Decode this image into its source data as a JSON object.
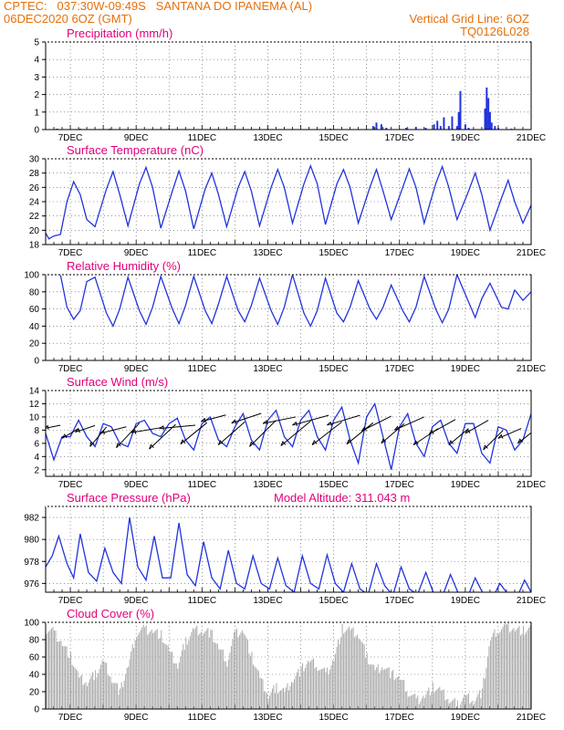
{
  "header": {
    "line1": "CPTEC:   037:30W-09:49S   SANTANA DO IPANEMA (AL)",
    "line2_left": "06DEC2020 6OZ (GMT)",
    "line2_right": "Vertical Grid Line: 6OZ",
    "line3_right": "TQ0126L028"
  },
  "colors": {
    "header": "#e6700a",
    "title": "#e0007a",
    "line": "#2233dd",
    "bar": "#2233dd",
    "cloud": "#aaaaaa",
    "grid": "#555555"
  },
  "chart_data": [
    {
      "type": "bar",
      "title": "Precipitation (mm/h)",
      "ylim": [
        0,
        5
      ],
      "yticks": [
        0,
        1,
        2,
        3,
        4,
        5
      ],
      "xlim": [
        6.25,
        21
      ],
      "xticks": [
        "7DEC",
        "9DEC",
        "11DEC",
        "13DEC",
        "15DEC",
        "17DEC",
        "19DEC",
        "21DEC"
      ],
      "x": [
        6.6,
        7.3,
        8.2,
        10.0,
        13.0,
        14.9,
        16.2,
        16.3,
        16.45,
        16.6,
        17.2,
        17.5,
        17.8,
        18.05,
        18.15,
        18.25,
        18.35,
        18.5,
        18.6,
        18.75,
        18.8,
        18.85,
        19.0,
        19.1,
        19.6,
        19.65,
        19.7,
        19.75,
        19.8,
        19.9,
        20.0,
        20.4
      ],
      "values": [
        0.05,
        0.05,
        0.05,
        0.05,
        0.05,
        0.05,
        0.2,
        0.4,
        0.3,
        0.1,
        0.1,
        0.15,
        0.1,
        0.3,
        0.5,
        0.2,
        0.7,
        0.2,
        0.75,
        0.2,
        1.0,
        2.2,
        0.3,
        0.1,
        1.2,
        2.4,
        1.8,
        1.0,
        0.4,
        0.2,
        0.1,
        0.05
      ]
    },
    {
      "type": "line",
      "title": "Surface Temperature (nC)",
      "ylim": [
        18,
        30
      ],
      "yticks": [
        18,
        20,
        22,
        24,
        26,
        28,
        30
      ],
      "xlim": [
        6.25,
        21
      ],
      "xticks": [
        "7DEC",
        "9DEC",
        "11DEC",
        "13DEC",
        "15DEC",
        "17DEC",
        "19DEC",
        "21DEC"
      ],
      "x": [
        6.25,
        6.35,
        6.5,
        6.7,
        6.9,
        7.1,
        7.3,
        7.5,
        7.75,
        8.1,
        8.3,
        8.5,
        8.75,
        9.1,
        9.3,
        9.5,
        9.75,
        10.1,
        10.3,
        10.5,
        10.75,
        11.1,
        11.3,
        11.5,
        11.75,
        12.1,
        12.3,
        12.5,
        12.75,
        13.1,
        13.3,
        13.5,
        13.75,
        14.1,
        14.3,
        14.5,
        14.75,
        15.1,
        15.3,
        15.5,
        15.75,
        16.1,
        16.3,
        16.5,
        16.75,
        17.1,
        17.3,
        17.5,
        17.75,
        18.1,
        18.3,
        18.5,
        18.75,
        19.1,
        19.3,
        19.5,
        19.75,
        20.1,
        20.3,
        20.5,
        20.75,
        21.0
      ],
      "values": [
        19.6,
        18.8,
        19.2,
        19.4,
        24.0,
        26.8,
        25.0,
        21.5,
        20.5,
        25.8,
        28.2,
        25.0,
        20.6,
        26.5,
        28.8,
        26.0,
        20.3,
        25.5,
        28.3,
        25.5,
        20.2,
        25.8,
        28.0,
        25.0,
        20.5,
        26.0,
        28.2,
        25.5,
        20.6,
        26.0,
        28.5,
        26.0,
        21.0,
        26.5,
        29.0,
        26.5,
        20.8,
        26.5,
        28.5,
        26.0,
        21.0,
        26.0,
        28.5,
        25.5,
        21.5,
        26.0,
        28.6,
        26.0,
        21.0,
        26.5,
        28.9,
        26.0,
        21.5,
        25.5,
        28.0,
        25.0,
        20.0,
        24.5,
        27.0,
        24.0,
        21.0,
        23.5
      ]
    },
    {
      "type": "line",
      "title": "Relative Humidity (%)",
      "ylim": [
        0,
        100
      ],
      "yticks": [
        0,
        20,
        40,
        60,
        80,
        100
      ],
      "xlim": [
        6.25,
        21
      ],
      "xticks": [
        "7DEC",
        "9DEC",
        "11DEC",
        "13DEC",
        "15DEC",
        "17DEC",
        "19DEC",
        "21DEC"
      ],
      "x": [
        6.25,
        6.35,
        6.5,
        6.7,
        6.9,
        7.1,
        7.3,
        7.5,
        7.75,
        8.1,
        8.3,
        8.5,
        8.75,
        9.1,
        9.3,
        9.5,
        9.75,
        10.1,
        10.3,
        10.5,
        10.75,
        11.1,
        11.3,
        11.5,
        11.75,
        12.1,
        12.3,
        12.5,
        12.75,
        13.1,
        13.3,
        13.5,
        13.75,
        14.1,
        14.3,
        14.5,
        14.75,
        15.1,
        15.3,
        15.5,
        15.75,
        16.1,
        16.3,
        16.5,
        16.75,
        17.1,
        17.3,
        17.5,
        17.75,
        18.1,
        18.3,
        18.5,
        18.75,
        19.1,
        19.3,
        19.5,
        19.75,
        20.1,
        20.3,
        20.5,
        20.75,
        21.0
      ],
      "values": [
        100,
        100,
        100,
        100,
        62,
        48,
        58,
        92,
        97,
        55,
        40,
        60,
        97,
        58,
        42,
        62,
        98,
        60,
        43,
        64,
        98,
        58,
        43,
        66,
        98,
        58,
        45,
        64,
        96,
        58,
        42,
        62,
        100,
        55,
        40,
        58,
        96,
        55,
        45,
        62,
        93,
        60,
        48,
        62,
        88,
        58,
        45,
        62,
        98,
        60,
        44,
        60,
        100,
        68,
        50,
        72,
        90,
        62,
        60,
        82,
        70,
        80
      ]
    },
    {
      "type": "line",
      "title": "Surface Wind (m/s)",
      "ylim": [
        1,
        14
      ],
      "yticks": [
        2,
        4,
        6,
        8,
        10,
        12,
        14
      ],
      "xlim": [
        6.25,
        21
      ],
      "xticks": [
        "7DEC",
        "9DEC",
        "11DEC",
        "13DEC",
        "15DEC",
        "17DEC",
        "19DEC",
        "21DEC"
      ],
      "x": [
        6.25,
        6.5,
        6.75,
        7.0,
        7.25,
        7.5,
        7.75,
        8.0,
        8.25,
        8.5,
        8.75,
        9.0,
        9.25,
        9.5,
        9.75,
        10.0,
        10.25,
        10.5,
        10.75,
        11.0,
        11.25,
        11.5,
        11.75,
        12.0,
        12.25,
        12.5,
        12.75,
        13.0,
        13.25,
        13.5,
        13.75,
        14.0,
        14.25,
        14.5,
        14.75,
        15.0,
        15.25,
        15.5,
        15.75,
        16.0,
        16.25,
        16.5,
        16.75,
        17.0,
        17.25,
        17.5,
        17.75,
        18.0,
        18.25,
        18.5,
        18.75,
        19.0,
        19.25,
        19.5,
        19.75,
        20.0,
        20.25,
        20.5,
        20.75,
        21.0
      ],
      "values": [
        7.5,
        3.5,
        7.0,
        7.0,
        9.5,
        7.0,
        5.5,
        9.0,
        8.5,
        6.0,
        5.5,
        9.0,
        9.5,
        7.5,
        7.0,
        9.0,
        9.8,
        6.5,
        5.0,
        9.0,
        10.0,
        6.5,
        5.5,
        8.5,
        10.5,
        6.5,
        5.0,
        9.5,
        11.0,
        7.0,
        5.5,
        9.5,
        11.0,
        7.0,
        5.0,
        9.5,
        11.5,
        6.5,
        3.0,
        10.0,
        12.0,
        7.0,
        2.0,
        8.5,
        10.5,
        6.0,
        4.0,
        8.5,
        9.5,
        6.0,
        4.5,
        9.0,
        9.0,
        4.5,
        3.0,
        8.5,
        8.0,
        5.0,
        6.5,
        10.5
      ],
      "arrows_x": [
        6.45,
        7.0,
        7.45,
        7.85,
        8.3,
        8.75,
        9.3,
        9.8,
        10.25,
        10.75,
        11.35,
        11.9,
        12.35,
        12.85,
        13.35,
        13.85,
        14.3,
        14.8,
        15.3,
        15.8,
        16.3,
        16.8,
        17.3,
        17.8,
        18.3,
        18.8,
        19.35,
        19.85,
        20.35,
        20.85
      ],
      "arrows_y": [
        8.5,
        7.5,
        8.2,
        7.0,
        8.0,
        7.2,
        8.0,
        7.0,
        8.5,
        7.5,
        9.8,
        7.5,
        9.8,
        7.5,
        9.5,
        7.5,
        9.5,
        7.5,
        9.5,
        7.5,
        9.0,
        7.5,
        9.0,
        7.0,
        8.5,
        7.0,
        8.5,
        6.5,
        7.5,
        7.0
      ],
      "arrows_u": [
        1.0,
        1.0,
        1.2,
        1.0,
        1.6,
        1.4,
        1.8,
        1.6,
        2.2,
        1.6,
        1.5,
        1.6,
        1.8,
        1.6,
        2.0,
        1.8,
        2.2,
        1.8,
        2.0,
        1.6,
        1.8,
        1.4,
        1.8,
        1.5,
        1.6,
        1.2,
        1.4,
        1.2,
        1.4,
        1.0
      ],
      "arrows_v": [
        0.2,
        0.6,
        0.4,
        1.2,
        0.4,
        1.5,
        0.3,
        1.5,
        0.2,
        1.3,
        0.4,
        1.4,
        0.6,
        1.6,
        0.4,
        1.5,
        0.6,
        1.4,
        0.6,
        1.3,
        0.9,
        1.2,
        0.8,
        1.0,
        0.9,
        1.0,
        0.8,
        1.2,
        0.6,
        0.8
      ]
    },
    {
      "type": "line",
      "title": "Surface Pressure (hPa)",
      "annotation": "Model Altitude: 311.043 m",
      "ylim": [
        975.2,
        983.0
      ],
      "yticks": [
        976,
        978,
        980,
        982
      ],
      "xlim": [
        6.25,
        21
      ],
      "xticks": [
        "7DEC",
        "9DEC",
        "11DEC",
        "13DEC",
        "15DEC",
        "17DEC",
        "19DEC",
        "21DEC"
      ],
      "x": [
        6.25,
        6.45,
        6.65,
        6.9,
        7.1,
        7.3,
        7.55,
        7.8,
        8.05,
        8.3,
        8.55,
        8.8,
        9.05,
        9.3,
        9.55,
        9.8,
        10.05,
        10.3,
        10.55,
        10.8,
        11.05,
        11.3,
        11.55,
        11.8,
        12.05,
        12.3,
        12.55,
        12.8,
        13.05,
        13.3,
        13.55,
        13.8,
        14.05,
        14.3,
        14.55,
        14.8,
        15.05,
        15.3,
        15.55,
        15.8,
        16.05,
        16.3,
        16.55,
        16.8,
        17.05,
        17.3,
        17.55,
        17.8,
        18.05,
        18.3,
        18.55,
        18.8,
        19.05,
        19.3,
        19.55,
        19.8,
        20.05,
        20.3,
        20.55,
        20.8,
        21.0
      ],
      "values": [
        977.5,
        978.5,
        980.3,
        977.8,
        976.5,
        980.5,
        977.0,
        976.2,
        979.2,
        977.0,
        976.0,
        982.0,
        977.5,
        976.3,
        980.3,
        976.5,
        976.5,
        981.5,
        976.8,
        975.8,
        979.8,
        976.5,
        975.5,
        979.0,
        976.0,
        975.5,
        978.5,
        976.0,
        975.5,
        978.3,
        975.8,
        975.2,
        978.5,
        976.0,
        975.5,
        978.6,
        976.0,
        975.2,
        977.8,
        975.5,
        975.0,
        977.8,
        975.8,
        974.9,
        977.5,
        975.5,
        975.0,
        977.0,
        975.0,
        974.8,
        976.8,
        975.0,
        974.6,
        976.5,
        975.0,
        974.5,
        976.0,
        975.0,
        974.6,
        976.3,
        975.2
      ]
    },
    {
      "type": "area",
      "title": "Cloud Cover (%)",
      "ylim": [
        0,
        100
      ],
      "yticks": [
        0,
        20,
        40,
        60,
        80,
        100
      ],
      "xlim": [
        6.25,
        21
      ],
      "xticks": [
        "7DEC",
        "9DEC",
        "11DEC",
        "13DEC",
        "15DEC",
        "17DEC",
        "19DEC",
        "21DEC"
      ],
      "x": [
        6.25,
        6.5,
        6.75,
        7.0,
        7.25,
        7.5,
        7.75,
        8.0,
        8.25,
        8.5,
        8.75,
        9.0,
        9.25,
        9.5,
        9.75,
        10.0,
        10.25,
        10.5,
        10.75,
        11.0,
        11.25,
        11.5,
        11.75,
        12.0,
        12.25,
        12.5,
        12.75,
        13.0,
        13.25,
        13.5,
        13.75,
        14.0,
        14.25,
        14.5,
        14.75,
        15.0,
        15.25,
        15.5,
        15.75,
        16.0,
        16.25,
        16.5,
        16.75,
        17.0,
        17.25,
        17.5,
        17.75,
        18.0,
        18.25,
        18.5,
        18.75,
        19.0,
        19.25,
        19.5,
        19.75,
        20.0,
        20.25,
        20.5,
        20.75,
        21.0
      ],
      "values": [
        92,
        88,
        75,
        60,
        35,
        30,
        40,
        55,
        35,
        20,
        50,
        88,
        92,
        90,
        85,
        65,
        50,
        78,
        92,
        90,
        88,
        70,
        55,
        88,
        90,
        60,
        35,
        15,
        25,
        20,
        35,
        45,
        55,
        50,
        40,
        58,
        92,
        90,
        85,
        60,
        45,
        50,
        40,
        35,
        20,
        10,
        15,
        25,
        20,
        10,
        5,
        15,
        10,
        20,
        80,
        92,
        95,
        92,
        90,
        92
      ]
    }
  ]
}
